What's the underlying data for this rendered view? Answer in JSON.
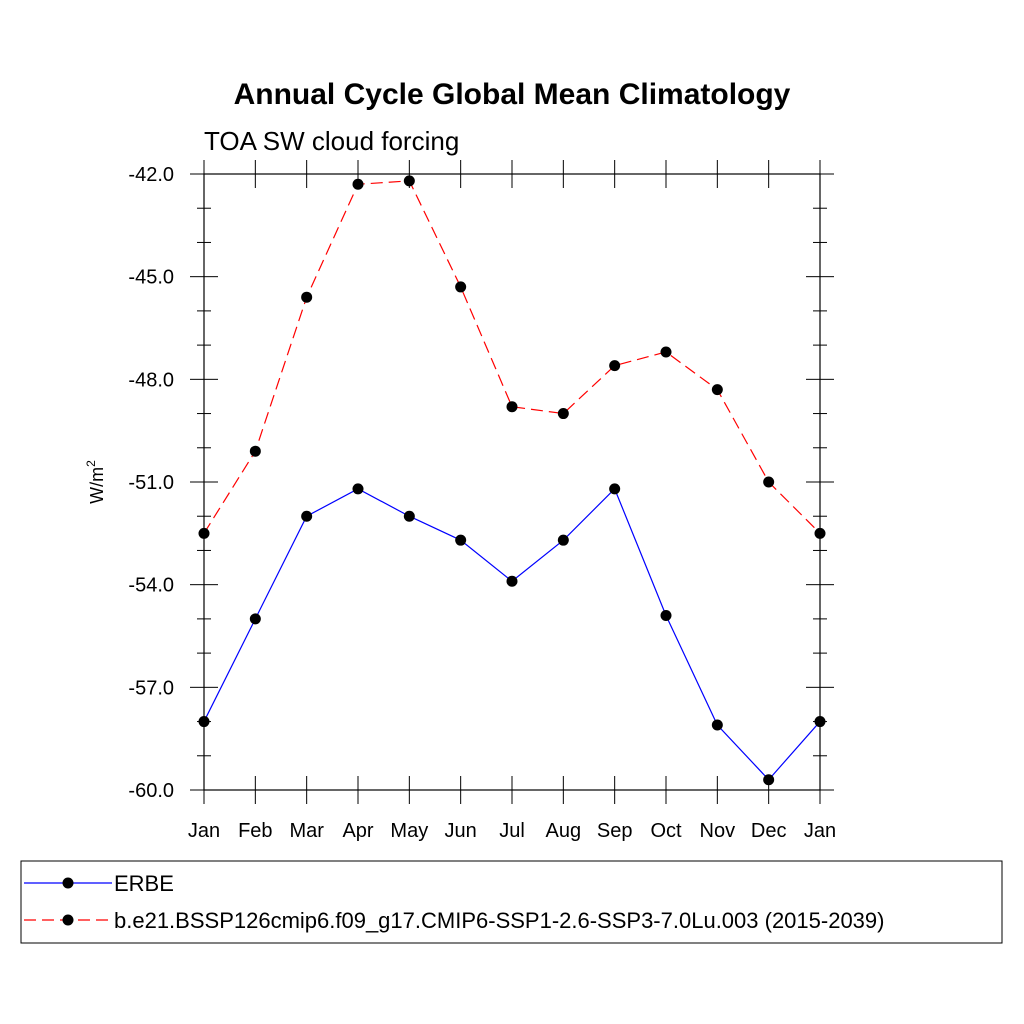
{
  "chart_data": {
    "type": "line",
    "title": "Annual Cycle Global Mean Climatology",
    "subtitle": "TOA SW cloud forcing",
    "ylabel": "W/m",
    "ylabel_superscript": "2",
    "ylim": [
      -60.0,
      -42.0
    ],
    "yticks": [
      "-42.0",
      "-45.0",
      "-48.0",
      "-51.0",
      "-54.0",
      "-57.0",
      "-60.0"
    ],
    "yticks_values": [
      -42,
      -45,
      -48,
      -51,
      -54,
      -57,
      -60
    ],
    "categories": [
      "Jan",
      "Feb",
      "Mar",
      "Apr",
      "May",
      "Jun",
      "Jul",
      "Aug",
      "Sep",
      "Oct",
      "Nov",
      "Dec",
      "Jan"
    ],
    "legend_position": "bottom",
    "series": [
      {
        "name": "ERBE",
        "color": "#0000ff",
        "dash": "solid",
        "values": [
          -58.0,
          -55.0,
          -52.0,
          -51.2,
          -52.0,
          -52.7,
          -53.9,
          -52.7,
          -51.2,
          -54.9,
          -58.1,
          -59.7,
          -58.0
        ]
      },
      {
        "name": "b.e21.BSSP126cmip6.f09_g17.CMIP6-SSP1-2.6-SSP3-7.0Lu.003 (2015-2039)",
        "color": "#ff0000",
        "dash": "dashed",
        "values": [
          -52.5,
          -50.1,
          -45.6,
          -42.3,
          -42.2,
          -45.3,
          -48.8,
          -49.0,
          -47.6,
          -47.2,
          -48.3,
          -51.0,
          -52.5
        ]
      }
    ]
  }
}
